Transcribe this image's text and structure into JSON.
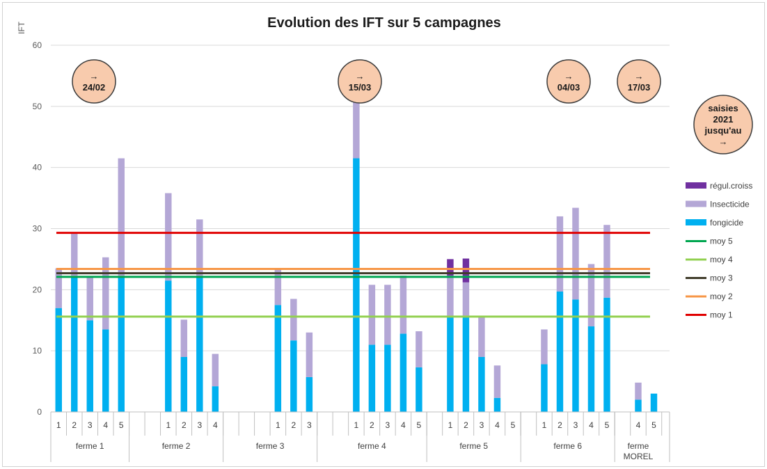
{
  "chart_data": {
    "type": "bar",
    "title": "Evolution des IFT sur 5 campagnes",
    "ylabel": "IFT",
    "xlabel": "",
    "ylim": [
      0,
      60
    ],
    "yticks": [
      0,
      10,
      20,
      30,
      40,
      50,
      60
    ],
    "grid": true,
    "legend_position": "right",
    "stacked": true,
    "groups": [
      {
        "name": "ferme 1",
        "campaigns": [
          "1",
          "2",
          "3",
          "4",
          "5"
        ]
      },
      {
        "name": "ferme 2",
        "campaigns": [
          "1",
          "2",
          "3",
          "4"
        ]
      },
      {
        "name": "ferme 3",
        "campaigns": [
          "1",
          "2",
          "3"
        ]
      },
      {
        "name": "ferme 4",
        "campaigns": [
          "1",
          "2",
          "3",
          "4",
          "5"
        ]
      },
      {
        "name": "ferme 5",
        "campaigns": [
          "1",
          "2",
          "3",
          "4",
          "5"
        ]
      },
      {
        "name": "ferme 6",
        "campaigns": [
          "1",
          "2",
          "3",
          "4",
          "5"
        ]
      },
      {
        "name": "ferme MOREL",
        "campaigns": [
          "4",
          "5"
        ]
      }
    ],
    "series": [
      {
        "name": "fongicide",
        "color": "#00b0f0",
        "values": [
          17,
          22,
          15,
          13.5,
          22,
          21.5,
          9,
          22,
          4.2,
          17.5,
          11.7,
          5.7,
          41.5,
          11,
          11,
          12.8,
          7.3,
          15.5,
          15.5,
          9,
          2.3,
          0,
          7.8,
          19.7,
          18.4,
          14,
          18.7,
          2,
          3
        ]
      },
      {
        "name": "Insecticide",
        "color": "#b4a7d6",
        "values": [
          6.5,
          7.3,
          7.2,
          11.8,
          19.5,
          14.3,
          6.1,
          9.5,
          5.3,
          5.8,
          6.8,
          7.3,
          12.8,
          9.8,
          9.8,
          9.5,
          5.9,
          6.8,
          5.7,
          6.5,
          5.3,
          0,
          5.7,
          12.3,
          15,
          10.2,
          11.9,
          2.8,
          0
        ]
      },
      {
        "name": "régul.croiss",
        "color": "#7030a0",
        "values": [
          0,
          0,
          0,
          0,
          0,
          0,
          0,
          0,
          0,
          0,
          0,
          0,
          0,
          0,
          0,
          0,
          0,
          2.7,
          3.9,
          0,
          0,
          0,
          0,
          0,
          0,
          0,
          0,
          0,
          0
        ]
      }
    ],
    "reference_lines": [
      {
        "name": "moy 1",
        "value": 29.3,
        "color": "#e00000"
      },
      {
        "name": "moy 2",
        "value": 23.4,
        "color": "#f79646"
      },
      {
        "name": "moy 3",
        "value": 22.7,
        "color": "#403c2a"
      },
      {
        "name": "moy 4",
        "value": 15.6,
        "color": "#92d050"
      },
      {
        "name": "moy 5",
        "value": 22.1,
        "color": "#00a650"
      }
    ],
    "legend_order": [
      "régul.croiss",
      "Insecticide",
      "fongicide",
      "moy 5",
      "moy 4",
      "moy 3",
      "moy 2",
      "moy 1"
    ],
    "annotations": [
      {
        "arrow": "→",
        "text": "24/02"
      },
      {
        "arrow": "→",
        "text": "15/03"
      },
      {
        "arrow": "→",
        "text": "04/03"
      },
      {
        "arrow": "→",
        "text": "17/03"
      },
      {
        "lines": [
          "saisies",
          "2021",
          "jusqu'au",
          "→"
        ]
      }
    ]
  }
}
